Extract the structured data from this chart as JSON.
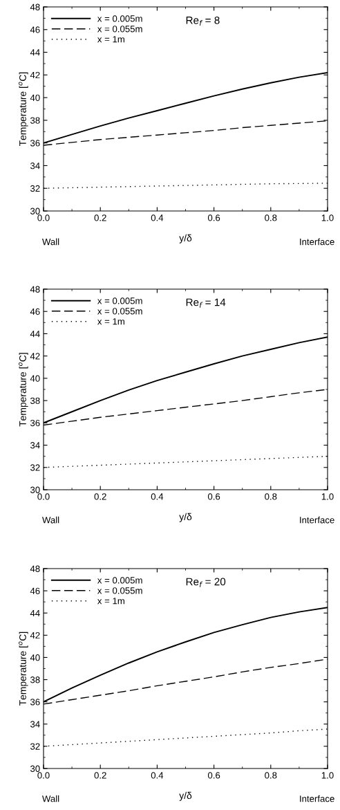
{
  "chart_data": [
    {
      "type": "line",
      "xlabel": "y/δ",
      "ylabel": "Temperature [$^{o}$C]",
      "annotations": [
        "Re$_{f}$ = 8",
        "Wall",
        "Interface"
      ],
      "x": [
        0,
        0.1,
        0.2,
        0.3,
        0.4,
        0.5,
        0.6,
        0.7,
        0.8,
        0.9,
        1.0
      ],
      "series": [
        {
          "name": "x = 0.005m",
          "color": "#000000",
          "line_style": "solid",
          "values": [
            36.0,
            36.75,
            37.5,
            38.2,
            38.85,
            39.5,
            40.15,
            40.75,
            41.3,
            41.8,
            42.2
          ]
        },
        {
          "name": "x = 0.055m",
          "color": "#000000",
          "line_style": "dashed",
          "values": [
            35.8,
            36.05,
            36.3,
            36.5,
            36.7,
            36.9,
            37.1,
            37.35,
            37.55,
            37.75,
            37.95
          ]
        },
        {
          "name": "x = 1m",
          "color": "#000000",
          "line_style": "dotted",
          "values": [
            32.0,
            32.05,
            32.1,
            32.15,
            32.2,
            32.25,
            32.3,
            32.35,
            32.4,
            32.42,
            32.45
          ]
        }
      ],
      "xlim": [
        0,
        1
      ],
      "xticks": [
        {
          "value": 0,
          "label": "0.0"
        },
        {
          "value": 0.2,
          "label": "0.2"
        },
        {
          "value": 0.4,
          "label": "0.4"
        },
        {
          "value": 0.6,
          "label": "0.6"
        },
        {
          "value": 0.8,
          "label": "0.8"
        },
        {
          "value": 1.0,
          "label": "1.0"
        }
      ],
      "ylim": [
        30,
        48
      ],
      "yticks": [
        30,
        32,
        34,
        36,
        38,
        40,
        42,
        44,
        46,
        48
      ],
      "grid": false,
      "legend": "top left",
      "marker": "none"
    },
    {
      "type": "line",
      "xlabel": "y/δ",
      "ylabel": "Temperature [$^{o}$C]",
      "annotations": [
        "Re$_{f}$ = 14",
        "Wall",
        "Interface"
      ],
      "x": [
        0,
        0.1,
        0.2,
        0.3,
        0.4,
        0.5,
        0.6,
        0.7,
        0.8,
        0.9,
        1.0
      ],
      "series": [
        {
          "name": "x = 0.005m",
          "color": "#000000",
          "line_style": "solid",
          "values": [
            36.0,
            37.0,
            38.0,
            38.95,
            39.8,
            40.55,
            41.3,
            42.0,
            42.6,
            43.2,
            43.7
          ]
        },
        {
          "name": "x = 0.055m",
          "color": "#000000",
          "line_style": "dashed",
          "values": [
            35.8,
            36.15,
            36.5,
            36.8,
            37.1,
            37.4,
            37.7,
            38.0,
            38.35,
            38.7,
            39.0
          ]
        },
        {
          "name": "x = 1m",
          "color": "#000000",
          "line_style": "dotted",
          "values": [
            32.0,
            32.1,
            32.2,
            32.3,
            32.4,
            32.5,
            32.6,
            32.7,
            32.8,
            32.9,
            33.0
          ]
        }
      ],
      "xlim": [
        0,
        1
      ],
      "xticks": [
        {
          "value": 0,
          "label": "0.0"
        },
        {
          "value": 0.2,
          "label": "0.2"
        },
        {
          "value": 0.4,
          "label": "0.4"
        },
        {
          "value": 0.6,
          "label": "0.6"
        },
        {
          "value": 0.8,
          "label": "0.8"
        },
        {
          "value": 1.0,
          "label": "1.0"
        }
      ],
      "ylim": [
        30,
        48
      ],
      "yticks": [
        30,
        32,
        34,
        36,
        38,
        40,
        42,
        44,
        46,
        48
      ],
      "grid": false,
      "legend": "top left",
      "marker": "none"
    },
    {
      "type": "line",
      "xlabel": "y/δ",
      "ylabel": "Temperature [$^{o}$C]",
      "annotations": [
        "Re$_{f}$ = 20",
        "Wall",
        "Interface"
      ],
      "x": [
        0,
        0.1,
        0.2,
        0.3,
        0.4,
        0.5,
        0.6,
        0.7,
        0.8,
        0.9,
        1.0
      ],
      "series": [
        {
          "name": "x = 0.005m",
          "color": "#000000",
          "line_style": "solid",
          "values": [
            36.0,
            37.25,
            38.4,
            39.5,
            40.5,
            41.4,
            42.25,
            42.95,
            43.6,
            44.1,
            44.5
          ]
        },
        {
          "name": "x = 0.055m",
          "color": "#000000",
          "line_style": "dashed",
          "values": [
            35.8,
            36.2,
            36.6,
            37.0,
            37.45,
            37.85,
            38.25,
            38.7,
            39.1,
            39.45,
            39.85
          ]
        },
        {
          "name": "x = 1m",
          "color": "#000000",
          "line_style": "dotted",
          "values": [
            32.0,
            32.15,
            32.3,
            32.45,
            32.6,
            32.75,
            32.9,
            33.05,
            33.2,
            33.4,
            33.55
          ]
        }
      ],
      "xlim": [
        0,
        1
      ],
      "xticks": [
        {
          "value": 0,
          "label": "0.0"
        },
        {
          "value": 0.2,
          "label": "0.2"
        },
        {
          "value": 0.4,
          "label": "0.4"
        },
        {
          "value": 0.6,
          "label": "0.6"
        },
        {
          "value": 0.8,
          "label": "0.8"
        },
        {
          "value": 1.0,
          "label": "1.0"
        }
      ],
      "ylim": [
        30,
        48
      ],
      "yticks": [
        30,
        32,
        34,
        36,
        38,
        40,
        42,
        44,
        46,
        48
      ],
      "grid": false,
      "legend": "top left",
      "marker": "none"
    }
  ]
}
